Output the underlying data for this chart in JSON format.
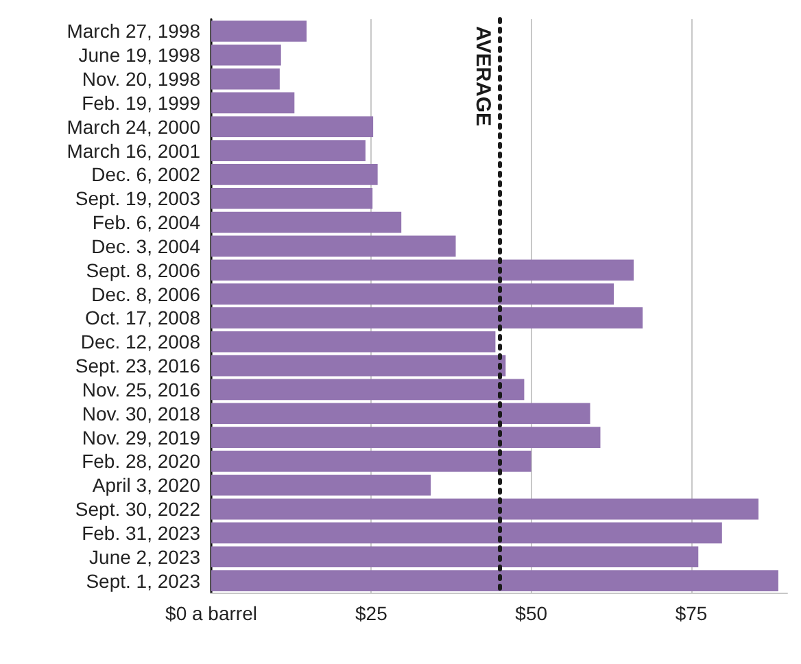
{
  "chart_data": {
    "type": "bar",
    "orientation": "horizontal",
    "categories": [
      "March 27, 1998",
      "June 19, 1998",
      "Nov. 20, 1998",
      "Feb. 19, 1999",
      "March 24, 2000",
      "March 16, 2001",
      "Dec. 6, 2002",
      "Sept. 19, 2003",
      "Feb. 6, 2004",
      "Dec. 3, 2004",
      "Sept. 8, 2006",
      "Dec. 8, 2006",
      "Oct. 17, 2008",
      "Dec. 12, 2008",
      "Sept. 23, 2016",
      "Nov. 25, 2016",
      "Nov. 30, 2018",
      "Nov. 29, 2019",
      "Feb. 28, 2020",
      "April 3, 2020",
      "Sept. 30, 2022",
      "Feb. 31, 2023",
      "June 2, 2023",
      "Sept. 1, 2023"
    ],
    "values": [
      14.9,
      10.9,
      10.7,
      13.0,
      25.3,
      24.1,
      26.0,
      25.2,
      29.7,
      38.2,
      66.0,
      62.9,
      67.4,
      44.4,
      46.0,
      48.9,
      59.2,
      60.8,
      50.0,
      34.3,
      85.5,
      79.8,
      76.1,
      88.6
    ],
    "color": "#9274b0",
    "xlim": [
      0,
      90
    ],
    "xticks": [
      {
        "value": 0,
        "label": "$0 a barrel"
      },
      {
        "value": 25,
        "label": "$25"
      },
      {
        "value": 50,
        "label": "$50"
      },
      {
        "value": 75,
        "label": "$75"
      }
    ],
    "grid": "x",
    "ref_lines": [
      {
        "axis": "x",
        "value": 45.1,
        "label": "AVERAGE",
        "color": "#1a1a1a",
        "line_style": "dotted"
      }
    ]
  }
}
